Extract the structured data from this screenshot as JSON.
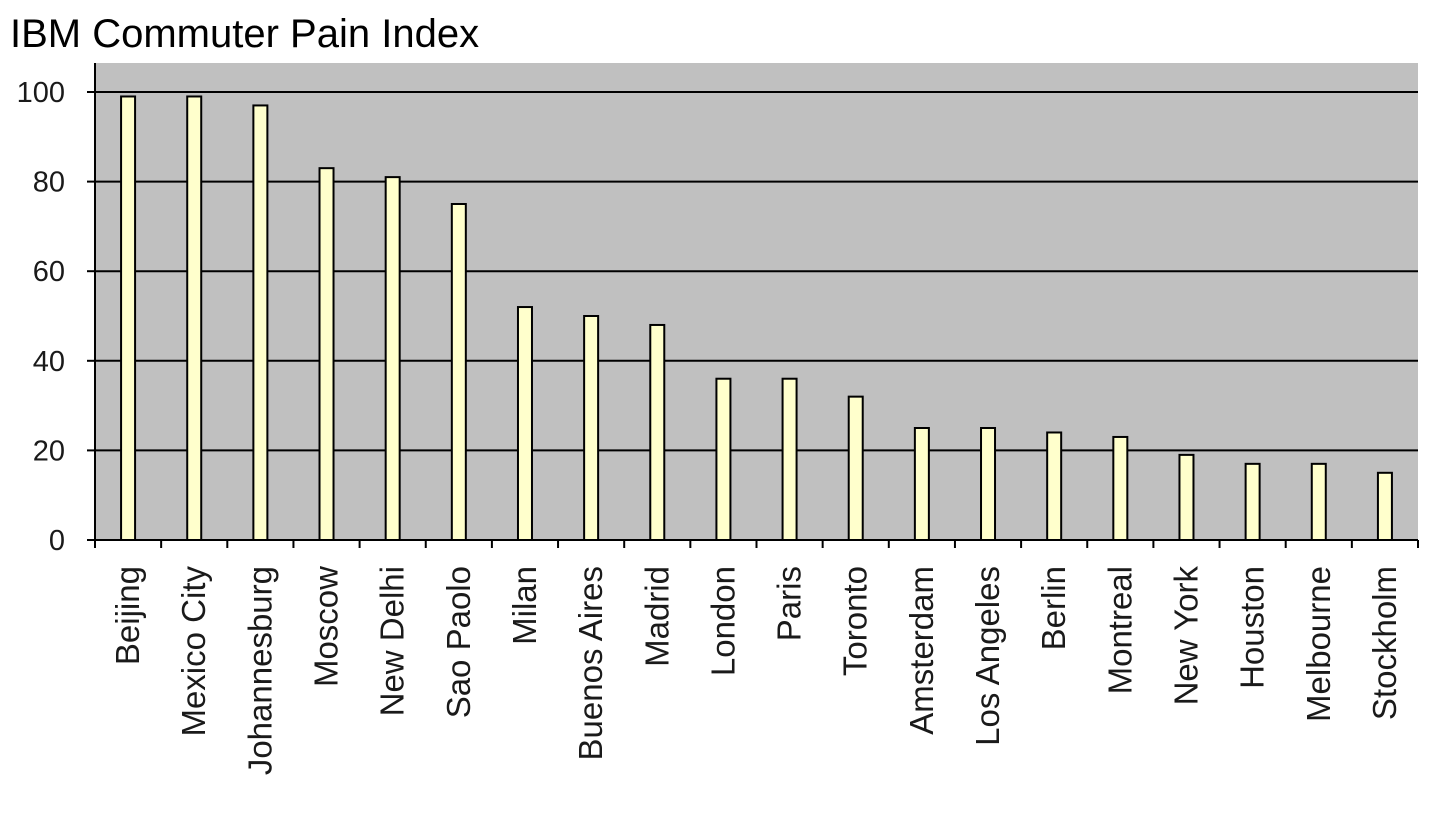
{
  "chart_data": {
    "type": "bar",
    "title": "IBM Commuter Pain Index",
    "xlabel": "",
    "ylabel": "",
    "ylim": [
      0,
      100
    ],
    "yticks": [
      "0",
      "20",
      "40",
      "60",
      "80",
      "100"
    ],
    "grid": true,
    "legend": "none",
    "colors": {
      "plot_background": "#c0c0c0",
      "bar_fill": "#ffffcc",
      "bar_stroke": "#000000",
      "gridline": "#000000"
    },
    "categories": [
      "Beijing",
      "Mexico City",
      "Johannesburg",
      "Moscow",
      "New Delhi",
      "Sao Paolo",
      "Milan",
      "Buenos Aires",
      "Madrid",
      "London",
      "Paris",
      "Toronto",
      "Amsterdam",
      "Los Angeles",
      "Berlin",
      "Montreal",
      "New York",
      "Houston",
      "Melbourne",
      "Stockholm"
    ],
    "values": [
      99,
      99,
      97,
      83,
      81,
      75,
      52,
      50,
      48,
      36,
      36,
      32,
      25,
      25,
      24,
      23,
      19,
      17,
      17,
      15
    ]
  }
}
